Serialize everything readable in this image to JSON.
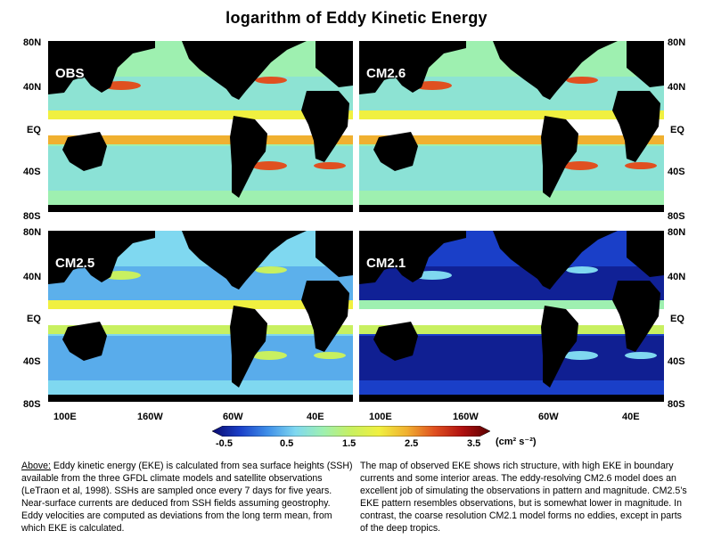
{
  "title": "logarithm of Eddy Kinetic Energy",
  "lat_labels": [
    "80N",
    "40N",
    "EQ",
    "40S",
    "80S"
  ],
  "lon_labels": [
    "100E",
    "160W",
    "60W",
    "40E"
  ],
  "panels": [
    {
      "label": "OBS",
      "style": "obs"
    },
    {
      "label": "CM2.6",
      "style": "obs"
    },
    {
      "label": "CM2.5",
      "style": "cm25"
    },
    {
      "label": "CM2.1",
      "style": "cm21"
    }
  ],
  "colorbar": {
    "ticks": [
      "-0.5",
      "0.5",
      "1.5",
      "2.5",
      "3.5"
    ],
    "units": "(cm² s⁻²)",
    "range": [
      -0.5,
      3.5
    ],
    "colors": [
      "#0a0a6e",
      "#1a3fc8",
      "#3f8fe8",
      "#7fd8f0",
      "#9ef0b0",
      "#c8f060",
      "#f0f040",
      "#f0b030",
      "#e05020",
      "#b01010",
      "#5a0000"
    ]
  },
  "caption_left": {
    "lead": "Above:",
    "text": " Eddy kinetic energy (EKE) is calculated from sea surface heights (SSH) available from the three GFDL climate models and satellite observations (LeTraon et al, 1998). SSHs are sampled once every 7 days for five years. Near-surface currents are deduced from SSH fields assuming geostrophy. Eddy velocities are computed as deviations from the long term mean, from which EKE is calculated."
  },
  "caption_right": {
    "text": "The map of observed EKE shows rich structure, with high EKE in boundary currents and some interior areas. The eddy-resolving CM2.6 model does an excellent job of simulating the observations in pattern and magnitude. CM2.5’s EKE pattern resembles observations, but is somewhat lower in magnitude. In contrast, the coarse resolution CM2.1 model forms no eddies, except in parts of the deep tropics."
  }
}
